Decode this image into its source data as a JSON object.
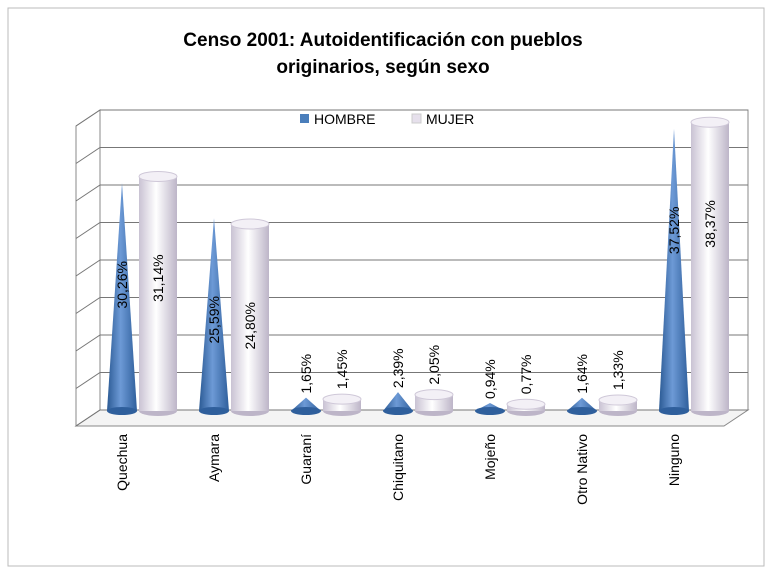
{
  "chart_data": {
    "type": "bar3d",
    "title": [
      "Censo 2001: Autoidentificación con pueblos",
      "originarios, según sexo"
    ],
    "categories": [
      "Quechua",
      "Aymara",
      "Guaraní",
      "Chiquitano",
      "Mojeño",
      "Otro Nativo",
      "Ninguno"
    ],
    "series": [
      {
        "name": "HOMBRE",
        "color": "#4a7ebb",
        "shape": "cone",
        "values": [
          30.26,
          25.59,
          1.65,
          2.39,
          0.94,
          1.64,
          37.52
        ],
        "value_labels": [
          "30,26%",
          "25,59%",
          "1,65%",
          "2,39%",
          "0,94%",
          "1,64%",
          "37,52%"
        ]
      },
      {
        "name": "MUJER",
        "color": "#e6e0ec",
        "shape": "cylinder",
        "values": [
          31.14,
          24.8,
          1.45,
          2.05,
          0.77,
          1.33,
          38.37
        ],
        "value_labels": [
          "31,14%",
          "24,80%",
          "1,45%",
          "2,05%",
          "0,77%",
          "1,33%",
          "38,37%"
        ]
      }
    ],
    "ylim": [
      0,
      40
    ],
    "yticks": [
      0,
      5,
      10,
      15,
      20,
      25,
      30,
      35,
      40
    ],
    "grid": true,
    "legend": "top"
  }
}
